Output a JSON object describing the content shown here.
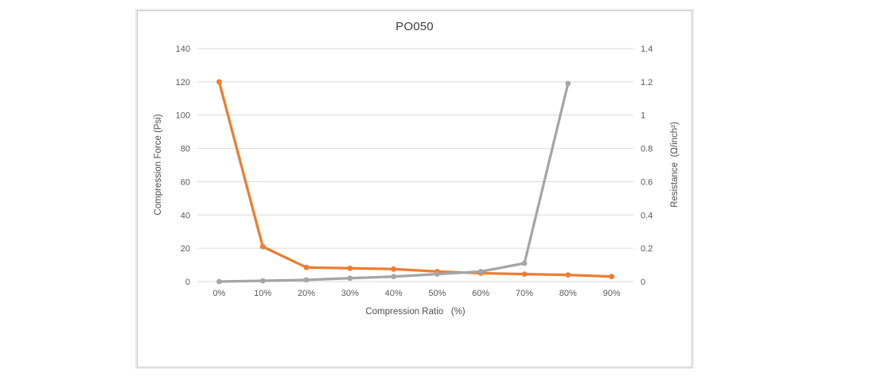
{
  "chart_data": {
    "type": "line",
    "title": "PO050",
    "xlabel": "Compression Ratio   (%)",
    "ylabel_left": "Compression Force (Psi)",
    "ylabel_right": "Resistance  (Ω/inch²)",
    "categories": [
      "0%",
      "10%",
      "20%",
      "30%",
      "40%",
      "50%",
      "60%",
      "70%",
      "80%",
      "90%"
    ],
    "axes": {
      "left": {
        "min": 0,
        "max": 140,
        "ticks": [
          0,
          20,
          40,
          60,
          80,
          100,
          120,
          140
        ]
      },
      "right": {
        "min": 0,
        "max": 1.4,
        "ticks": [
          0,
          0.2,
          0.4,
          0.6,
          0.8,
          1,
          1.2,
          1.4
        ]
      }
    },
    "grid": true,
    "legend": "none",
    "series": [
      {
        "id": "compression-force",
        "name": "Compression Force (Psi)",
        "axis": "left",
        "color": "#ED7D31",
        "values": [
          120,
          21,
          8.5,
          8,
          7.5,
          6,
          5,
          4.5,
          4,
          3
        ]
      },
      {
        "id": "resistance",
        "name": "Resistance (Ω/inch²)",
        "axis": "right",
        "color": "#A5A5A5",
        "values": [
          0,
          0.005,
          0.01,
          0.02,
          0.03,
          0.045,
          0.06,
          0.11,
          1.19,
          null
        ]
      }
    ],
    "colors": {
      "grid": "#D9D9D9",
      "tick_text": "#595959",
      "title_text": "#3C3C3C",
      "frame": "#C9C9C6"
    }
  }
}
